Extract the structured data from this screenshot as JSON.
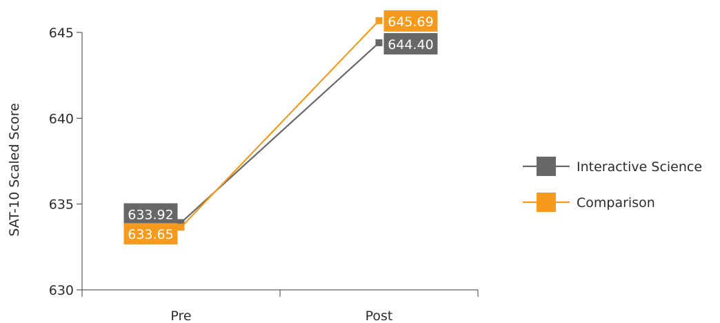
{
  "chart_data": {
    "type": "line",
    "title": "",
    "xlabel": "",
    "ylabel": "SAT-10 Scaled Score",
    "categories": [
      "Pre",
      "Post"
    ],
    "ylim": [
      630,
      645
    ],
    "yticks": [
      630,
      635,
      640,
      645
    ],
    "grid": false,
    "legend_position": "right",
    "series": [
      {
        "name": "Interactive Science",
        "color": "#676767",
        "values": [
          633.92,
          644.4
        ],
        "labels": [
          "633.92",
          "644.40"
        ]
      },
      {
        "name": "Comparison",
        "color": "#f59a1d",
        "values": [
          633.65,
          645.69
        ],
        "labels": [
          "633.65",
          "645.69"
        ]
      }
    ]
  }
}
